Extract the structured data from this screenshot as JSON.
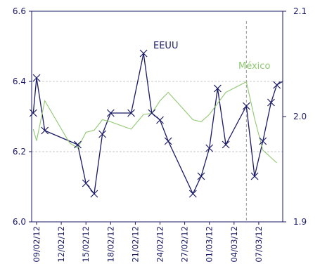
{
  "chart_data": {
    "type": "line",
    "title": "",
    "xlabel": "",
    "ylabel": "",
    "x_tick_labels": [
      "09/02/12",
      "12/02/12",
      "15/02/12",
      "18/02/12",
      "21/02/12",
      "24/02/12",
      "27/02/12",
      "01/03/12",
      "04/03/12",
      "07/03/12"
    ],
    "x_tick_index": [
      0,
      3,
      6,
      9,
      12,
      15,
      18,
      21,
      24,
      27
    ],
    "n_points": 30,
    "left_axis": {
      "min": 6.0,
      "max": 6.6,
      "ticks": [
        "6.0",
        "6.2",
        "6.4",
        "6.6"
      ],
      "tick_values": [
        6.0,
        6.2,
        6.4,
        6.6
      ]
    },
    "right_axis": {
      "min": 1.9,
      "max": 2.1,
      "ticks": [
        "1.9",
        "2.0",
        "2.1"
      ],
      "tick_values": [
        1.9,
        2.0,
        2.1
      ]
    },
    "grid": true,
    "reference_line_index": 25.5,
    "series": [
      {
        "name": "EEUU",
        "axis": "left",
        "color": "#1a1a66",
        "marker": "x",
        "points": [
          [
            -0.4,
            6.31
          ],
          [
            0,
            6.41
          ],
          [
            1,
            6.26
          ],
          [
            5,
            6.22
          ],
          [
            6,
            6.11
          ],
          [
            7,
            6.08
          ],
          [
            8,
            6.25
          ],
          [
            9,
            6.31
          ],
          [
            11.5,
            6.31
          ],
          [
            13,
            6.48
          ],
          [
            14,
            6.31
          ],
          [
            15,
            6.29
          ],
          [
            16,
            6.23
          ],
          [
            19,
            6.08
          ],
          [
            20,
            6.13
          ],
          [
            21,
            6.21
          ],
          [
            22,
            6.38
          ],
          [
            23,
            6.22
          ],
          [
            25.5,
            6.33
          ],
          [
            26.5,
            6.13
          ],
          [
            27.5,
            6.23
          ],
          [
            28.5,
            6.34
          ],
          [
            29.2,
            6.39
          ],
          [
            30,
            6.4
          ]
        ]
      },
      {
        "name": "México",
        "axis": "right",
        "color": "#90c870",
        "marker": "none",
        "points": [
          [
            -0.4,
            1.988
          ],
          [
            0,
            1.977
          ],
          [
            1,
            2.015
          ],
          [
            4,
            1.975
          ],
          [
            5,
            1.97
          ],
          [
            6,
            1.985
          ],
          [
            7,
            1.987
          ],
          [
            8,
            1.997
          ],
          [
            9,
            1.995
          ],
          [
            11.5,
            1.988
          ],
          [
            13,
            2.002
          ],
          [
            14,
            2.003
          ],
          [
            15,
            2.015
          ],
          [
            16,
            2.023
          ],
          [
            19,
            1.997
          ],
          [
            20,
            1.995
          ],
          [
            21,
            2.002
          ],
          [
            23,
            2.023
          ],
          [
            25.5,
            2.033
          ],
          [
            26.5,
            1.998
          ],
          [
            27.5,
            1.968
          ],
          [
            28.5,
            1.961
          ],
          [
            29.2,
            1.956
          ]
        ]
      }
    ],
    "labels": {
      "eeuu": "EEUU",
      "mexico": "México"
    }
  }
}
